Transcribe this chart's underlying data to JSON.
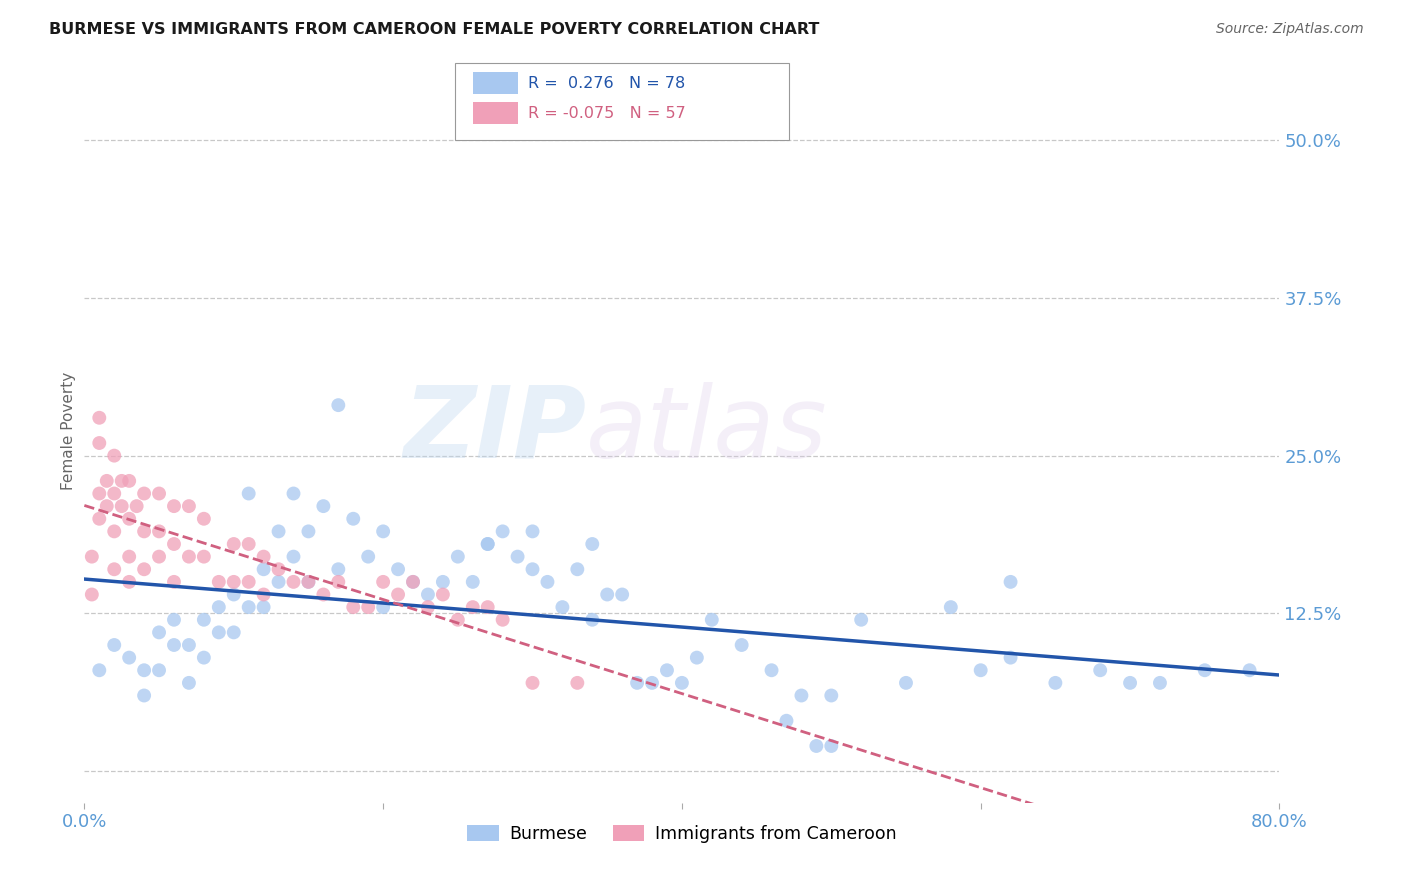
{
  "title": "BURMESE VS IMMIGRANTS FROM CAMEROON FEMALE POVERTY CORRELATION CHART",
  "source": "Source: ZipAtlas.com",
  "ylabel": "Female Poverty",
  "xlim": [
    0.0,
    0.8
  ],
  "ylim": [
    -0.025,
    0.565
  ],
  "xticks": [
    0.0,
    0.2,
    0.4,
    0.6,
    0.8
  ],
  "xtick_labels": [
    "0.0%",
    "",
    "",
    "",
    "80.0%"
  ],
  "ytick_vals": [
    0.0,
    0.125,
    0.25,
    0.375,
    0.5
  ],
  "ytick_labels": [
    "",
    "12.5%",
    "25.0%",
    "37.5%",
    "50.0%"
  ],
  "watermark_zip": "ZIP",
  "watermark_atlas": "atlas",
  "blue_R": "0.276",
  "blue_N": "78",
  "pink_R": "-0.075",
  "pink_N": "57",
  "blue_color": "#a8c8f0",
  "pink_color": "#f0a0b8",
  "blue_line_color": "#2255aa",
  "pink_line_color": "#d06080",
  "tick_color": "#5b9bd5",
  "grid_color": "#c8c8c8",
  "blue_x": [
    0.01,
    0.02,
    0.03,
    0.04,
    0.04,
    0.05,
    0.05,
    0.06,
    0.06,
    0.07,
    0.07,
    0.08,
    0.08,
    0.09,
    0.09,
    0.1,
    0.1,
    0.11,
    0.11,
    0.12,
    0.12,
    0.13,
    0.13,
    0.14,
    0.14,
    0.15,
    0.15,
    0.16,
    0.17,
    0.17,
    0.18,
    0.19,
    0.2,
    0.2,
    0.21,
    0.22,
    0.23,
    0.24,
    0.25,
    0.26,
    0.27,
    0.28,
    0.29,
    0.3,
    0.31,
    0.32,
    0.33,
    0.34,
    0.35,
    0.36,
    0.37,
    0.38,
    0.39,
    0.4,
    0.41,
    0.42,
    0.44,
    0.46,
    0.48,
    0.5,
    0.52,
    0.55,
    0.58,
    0.6,
    0.62,
    0.65,
    0.68,
    0.7,
    0.72,
    0.75,
    0.78,
    0.27,
    0.3,
    0.34,
    0.62,
    0.47,
    0.49,
    0.5
  ],
  "blue_y": [
    0.08,
    0.1,
    0.09,
    0.08,
    0.06,
    0.11,
    0.08,
    0.12,
    0.1,
    0.1,
    0.07,
    0.12,
    0.09,
    0.13,
    0.11,
    0.14,
    0.11,
    0.13,
    0.22,
    0.16,
    0.13,
    0.19,
    0.15,
    0.22,
    0.17,
    0.19,
    0.15,
    0.21,
    0.29,
    0.16,
    0.2,
    0.17,
    0.19,
    0.13,
    0.16,
    0.15,
    0.14,
    0.15,
    0.17,
    0.15,
    0.18,
    0.19,
    0.17,
    0.16,
    0.15,
    0.13,
    0.16,
    0.12,
    0.14,
    0.14,
    0.07,
    0.07,
    0.08,
    0.07,
    0.09,
    0.12,
    0.1,
    0.08,
    0.06,
    0.06,
    0.12,
    0.07,
    0.13,
    0.08,
    0.09,
    0.07,
    0.08,
    0.07,
    0.07,
    0.08,
    0.08,
    0.18,
    0.19,
    0.18,
    0.15,
    0.04,
    0.02,
    0.02
  ],
  "pink_x": [
    0.005,
    0.005,
    0.01,
    0.01,
    0.01,
    0.01,
    0.015,
    0.015,
    0.02,
    0.02,
    0.02,
    0.02,
    0.025,
    0.025,
    0.03,
    0.03,
    0.03,
    0.03,
    0.035,
    0.04,
    0.04,
    0.04,
    0.05,
    0.05,
    0.05,
    0.06,
    0.06,
    0.06,
    0.07,
    0.07,
    0.08,
    0.08,
    0.09,
    0.1,
    0.1,
    0.11,
    0.11,
    0.12,
    0.12,
    0.13,
    0.14,
    0.15,
    0.16,
    0.17,
    0.18,
    0.19,
    0.2,
    0.21,
    0.22,
    0.23,
    0.24,
    0.25,
    0.26,
    0.27,
    0.28,
    0.3,
    0.33
  ],
  "pink_y": [
    0.17,
    0.14,
    0.28,
    0.26,
    0.22,
    0.2,
    0.23,
    0.21,
    0.25,
    0.22,
    0.19,
    0.16,
    0.23,
    0.21,
    0.23,
    0.2,
    0.17,
    0.15,
    0.21,
    0.22,
    0.19,
    0.16,
    0.22,
    0.19,
    0.17,
    0.21,
    0.18,
    0.15,
    0.21,
    0.17,
    0.2,
    0.17,
    0.15,
    0.18,
    0.15,
    0.18,
    0.15,
    0.17,
    0.14,
    0.16,
    0.15,
    0.15,
    0.14,
    0.15,
    0.13,
    0.13,
    0.15,
    0.14,
    0.15,
    0.13,
    0.14,
    0.12,
    0.13,
    0.13,
    0.12,
    0.07,
    0.07
  ]
}
